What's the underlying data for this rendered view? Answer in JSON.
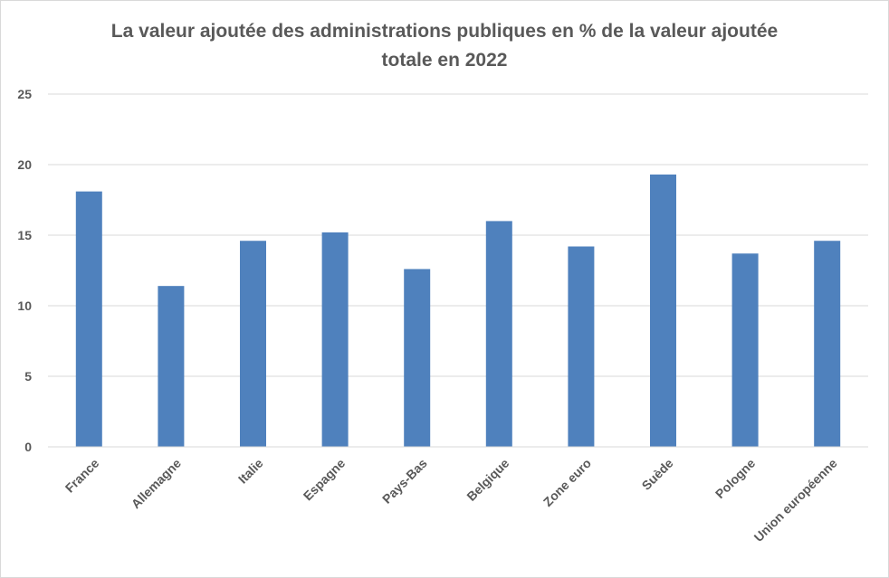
{
  "chart_data": {
    "type": "bar",
    "title_line1": "La valeur ajoutée des administrations publiques en % de la valeur ajoutée",
    "title_line2": "totale en 2022",
    "categories": [
      "France",
      "Allemagne",
      "Italie",
      "Espagne",
      "Pays-Bas",
      "Belgique",
      "Zone euro",
      "Suède",
      "Pologne",
      "Union européenne"
    ],
    "values": [
      18.1,
      11.4,
      14.6,
      15.2,
      12.6,
      16.0,
      14.2,
      19.3,
      13.7,
      14.6
    ],
    "ylim": [
      0,
      25
    ],
    "yticks": [
      0,
      5,
      10,
      15,
      20,
      25
    ],
    "grid": true,
    "bar_color": "#4f81bd",
    "grid_color": "#d9d9d9"
  }
}
